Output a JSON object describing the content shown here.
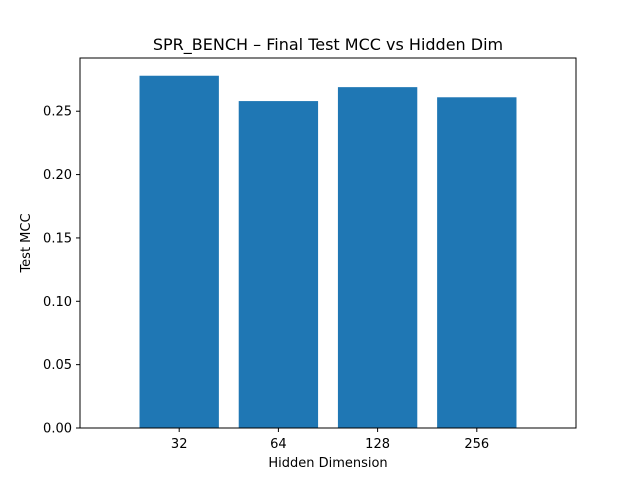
{
  "chart_data": {
    "type": "bar",
    "title": "SPR_BENCH – Final Test MCC vs Hidden Dim",
    "xlabel": "Hidden Dimension",
    "ylabel": "Test MCC",
    "categories": [
      "32",
      "64",
      "128",
      "256"
    ],
    "values": [
      0.278,
      0.258,
      0.269,
      0.261
    ],
    "ylim": [
      0,
      0.292
    ],
    "yticks": [
      "0.00",
      "0.05",
      "0.10",
      "0.15",
      "0.20",
      "0.25"
    ],
    "grid": false,
    "bar_color": "#1f77b4"
  }
}
